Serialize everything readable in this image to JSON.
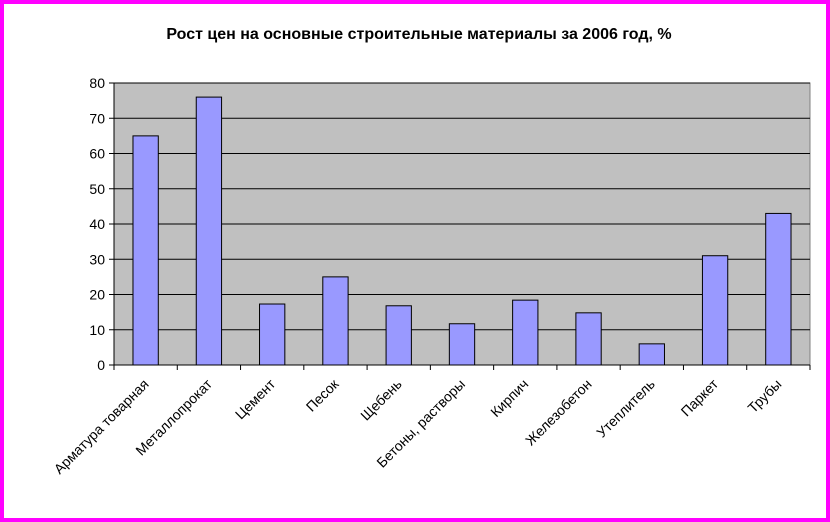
{
  "chart_data": {
    "type": "bar",
    "title": "Рост цен на основные строительные материалы за 2006 год, %",
    "xlabel": "",
    "ylabel": "",
    "categories": [
      "Арматура товарная",
      "Металлопрокат",
      "Цемент",
      "Песок",
      "Щебень",
      "Бетоны, растворы",
      "Кирпич",
      "Железобетон",
      "Утеплитель",
      "Паркет",
      "Трубы"
    ],
    "values": [
      65,
      76,
      17.3,
      25,
      16.8,
      11.7,
      18.4,
      14.8,
      6,
      31,
      43
    ],
    "ylim": [
      0,
      80
    ],
    "yticks": [
      0,
      10,
      20,
      30,
      40,
      50,
      60,
      70,
      80
    ],
    "grid": true,
    "legend": "none",
    "colors": {
      "bar_fill": "#9999ff",
      "bar_stroke": "#000000",
      "plot_bg": "#c0c0c0",
      "frame": "#ff00ff"
    }
  }
}
